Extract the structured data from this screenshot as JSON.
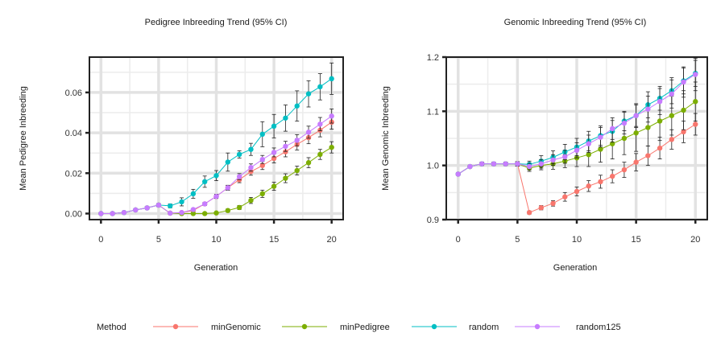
{
  "chart_data": [
    {
      "type": "line",
      "title": "Pedigree Inbreeding Trend (95% CI)",
      "xlabel": "Generation",
      "ylabel": "Mean Pedigree Inbreeding",
      "xlim": [
        -1,
        21
      ],
      "ylim": [
        -0.003,
        0.0775
      ],
      "xticks": [
        0,
        5,
        10,
        15,
        20
      ],
      "xtick_labels": [
        "0",
        "5",
        "10",
        "15",
        "20"
      ],
      "yticks": [
        0,
        0.02,
        0.04,
        0.06
      ],
      "ytick_labels": [
        "0.00",
        "0.02",
        "0.04",
        "0.06"
      ],
      "grid": true,
      "series": [
        {
          "name": "minGenomic",
          "x": [
            0,
            1,
            2,
            3,
            4,
            5,
            6,
            7,
            8,
            9,
            10,
            11,
            12,
            13,
            14,
            15,
            16,
            17,
            18,
            19,
            20
          ],
          "y": [
            0,
            0,
            0.0005,
            0.0018,
            0.0028,
            0.0042,
            0.0002,
            0.0005,
            0.0015,
            0.0048,
            0.0085,
            0.0128,
            0.0168,
            0.0208,
            0.0238,
            0.0273,
            0.0306,
            0.0343,
            0.0376,
            0.0413,
            0.0453
          ],
          "err": [
            0,
            0,
            0.0003,
            0.0005,
            0.0006,
            0.0008,
            0.0003,
            0.0004,
            0.0006,
            0.0008,
            0.001,
            0.0012,
            0.0015,
            0.0018,
            0.002,
            0.0022,
            0.0025,
            0.0028,
            0.003,
            0.0033,
            0.0035
          ]
        },
        {
          "name": "minPedigree",
          "x": [
            0,
            1,
            2,
            3,
            4,
            5,
            6,
            7,
            8,
            9,
            10,
            11,
            12,
            13,
            14,
            15,
            16,
            17,
            18,
            19,
            20
          ],
          "y": [
            0,
            0,
            0.0005,
            0.0018,
            0.0028,
            0.0042,
            0.0002,
            0,
            0,
            0,
            0.0003,
            0.0015,
            0.003,
            0.0065,
            0.0098,
            0.0135,
            0.0175,
            0.0213,
            0.0252,
            0.0293,
            0.0328
          ],
          "err": [
            0,
            0,
            0.0003,
            0.0005,
            0.0006,
            0.0008,
            0.0002,
            0.0002,
            0.0002,
            0.0003,
            0.0005,
            0.0008,
            0.001,
            0.0015,
            0.0018,
            0.002,
            0.0022,
            0.0022,
            0.0025,
            0.0025,
            0.0028
          ]
        },
        {
          "name": "random",
          "x": [
            0,
            1,
            2,
            3,
            4,
            5,
            6,
            7,
            8,
            9,
            10,
            11,
            12,
            13,
            14,
            15,
            16,
            17,
            18,
            19,
            20
          ],
          "y": [
            0,
            0,
            0.0005,
            0.0018,
            0.0028,
            0.0042,
            0.0038,
            0.0058,
            0.0098,
            0.0158,
            0.0188,
            0.0255,
            0.0293,
            0.0318,
            0.0393,
            0.0433,
            0.0473,
            0.0533,
            0.0593,
            0.0628,
            0.0668
          ],
          "err": [
            0,
            0,
            0.0003,
            0.0005,
            0.0006,
            0.0008,
            0.001,
            0.002,
            0.0022,
            0.0028,
            0.0025,
            0.0045,
            0.0018,
            0.003,
            0.0062,
            0.0058,
            0.0065,
            0.0075,
            0.0065,
            0.0065,
            0.0078
          ]
        },
        {
          "name": "random125",
          "x": [
            0,
            1,
            2,
            3,
            4,
            5,
            6,
            7,
            8,
            9,
            10,
            11,
            12,
            13,
            14,
            15,
            16,
            17,
            18,
            19,
            20
          ],
          "y": [
            0,
            0,
            0.0005,
            0.0018,
            0.0028,
            0.0042,
            0.0002,
            0.0005,
            0.002,
            0.0048,
            0.0085,
            0.0128,
            0.0183,
            0.0228,
            0.0268,
            0.0303,
            0.0333,
            0.0363,
            0.0403,
            0.0443,
            0.0483
          ],
          "err": [
            0,
            0,
            0.0003,
            0.0005,
            0.0006,
            0.0008,
            0.0002,
            0.0003,
            0.0005,
            0.0008,
            0.001,
            0.0012,
            0.0015,
            0.0018,
            0.002,
            0.0022,
            0.0025,
            0.0028,
            0.003,
            0.0033,
            0.0035
          ]
        }
      ]
    },
    {
      "type": "line",
      "title": "Genomic Inbreeding Trend (95% CI)",
      "xlabel": "Generation",
      "ylabel": "Mean Genomic Inbreeding",
      "xlim": [
        -1,
        21
      ],
      "ylim": [
        0.9,
        1.2
      ],
      "xticks": [
        0,
        5,
        10,
        15,
        20
      ],
      "xtick_labels": [
        "0",
        "5",
        "10",
        "15",
        "20"
      ],
      "yticks": [
        0.9,
        1.0,
        1.1,
        1.2
      ],
      "ytick_labels": [
        "0.9",
        "1.0",
        "1.1",
        "1.2"
      ],
      "grid": true,
      "series": [
        {
          "name": "minGenomic",
          "x": [
            0,
            1,
            2,
            3,
            4,
            5,
            6,
            7,
            8,
            9,
            10,
            11,
            12,
            13,
            14,
            15,
            16,
            17,
            18,
            19,
            20
          ],
          "y": [
            0.984,
            0.998,
            1.003,
            1.003,
            1.003,
            1.003,
            0.913,
            0.922,
            0.93,
            0.942,
            0.952,
            0.962,
            0.97,
            0.98,
            0.992,
            1.006,
            1.018,
            1.032,
            1.048,
            1.062,
            1.076
          ],
          "err": [
            0.002,
            0.002,
            0.003,
            0.003,
            0.003,
            0.004,
            0.003,
            0.004,
            0.005,
            0.008,
            0.008,
            0.01,
            0.012,
            0.012,
            0.014,
            0.016,
            0.018,
            0.02,
            0.018,
            0.02,
            0.02
          ]
        },
        {
          "name": "minPedigree",
          "x": [
            0,
            1,
            2,
            3,
            4,
            5,
            6,
            7,
            8,
            9,
            10,
            11,
            12,
            13,
            14,
            15,
            16,
            17,
            18,
            19,
            20
          ],
          "y": [
            0.984,
            0.998,
            1.003,
            1.003,
            1.003,
            1.003,
            0.995,
            1.0,
            1.003,
            1.008,
            1.014,
            1.02,
            1.03,
            1.04,
            1.05,
            1.06,
            1.07,
            1.082,
            1.092,
            1.102,
            1.118
          ],
          "err": [
            0.002,
            0.002,
            0.003,
            0.003,
            0.003,
            0.004,
            0.006,
            0.008,
            0.01,
            0.012,
            0.016,
            0.022,
            0.024,
            0.028,
            0.03,
            0.034,
            0.034,
            0.036,
            0.036,
            0.036,
            0.036
          ]
        },
        {
          "name": "random",
          "x": [
            0,
            1,
            2,
            3,
            4,
            5,
            6,
            7,
            8,
            9,
            10,
            11,
            12,
            13,
            14,
            15,
            16,
            17,
            18,
            19,
            20
          ],
          "y": [
            0.984,
            0.998,
            1.003,
            1.003,
            1.003,
            1.003,
            1.002,
            1.008,
            1.015,
            1.025,
            1.034,
            1.045,
            1.055,
            1.063,
            1.082,
            1.092,
            1.112,
            1.124,
            1.138,
            1.156,
            1.17
          ],
          "err": [
            0.002,
            0.002,
            0.003,
            0.003,
            0.003,
            0.004,
            0.006,
            0.01,
            0.012,
            0.014,
            0.016,
            0.018,
            0.018,
            0.02,
            0.018,
            0.02,
            0.024,
            0.022,
            0.024,
            0.024,
            0.024
          ]
        },
        {
          "name": "random125",
          "x": [
            0,
            1,
            2,
            3,
            4,
            5,
            6,
            7,
            8,
            9,
            10,
            11,
            12,
            13,
            14,
            15,
            16,
            17,
            18,
            19,
            20
          ],
          "y": [
            0.984,
            0.998,
            1.003,
            1.003,
            1.003,
            1.003,
            0.998,
            1.003,
            1.01,
            1.016,
            1.028,
            1.04,
            1.052,
            1.068,
            1.078,
            1.092,
            1.104,
            1.118,
            1.132,
            1.154,
            1.168
          ],
          "err": [
            0.002,
            0.002,
            0.003,
            0.003,
            0.003,
            0.004,
            0.006,
            0.008,
            0.01,
            0.012,
            0.014,
            0.016,
            0.018,
            0.02,
            0.02,
            0.022,
            0.024,
            0.024,
            0.026,
            0.028,
            0.03
          ]
        }
      ]
    }
  ],
  "legend": {
    "title": "Method",
    "placement": "bottom",
    "items": [
      {
        "label": "minGenomic",
        "color": "#F8766D"
      },
      {
        "label": "minPedigree",
        "color": "#7CAE00"
      },
      {
        "label": "random",
        "color": "#00BFC4"
      },
      {
        "label": "random125",
        "color": "#C77CFF"
      }
    ]
  }
}
